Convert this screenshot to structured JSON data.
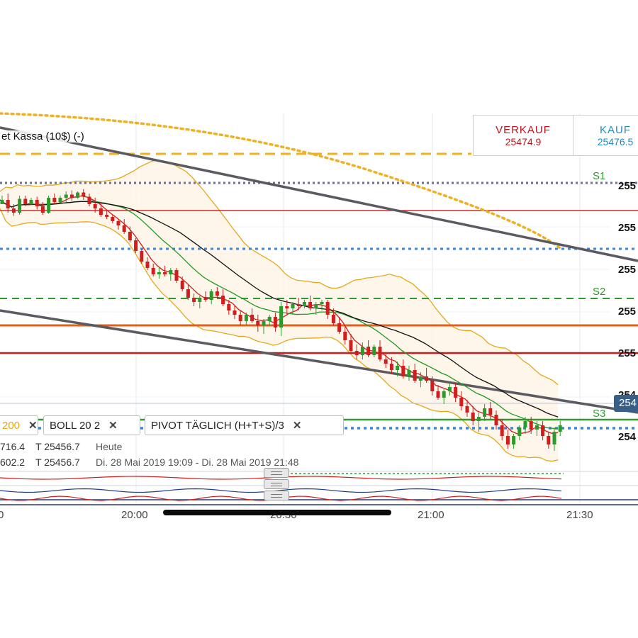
{
  "instrument_title": "et Kassa (10$) (-)",
  "quote": {
    "sell_label": "VERKAUF",
    "sell_value": "25474.9",
    "buy_label": "KAUF",
    "buy_value": "25476.5"
  },
  "indicator_chips": [
    {
      "text": "200"
    },
    {
      "text": "BOLL  20  2"
    },
    {
      "text": "PIVOT  TÄGLICH  (H+T+S)/3"
    }
  ],
  "info": {
    "line1_high": "716.4",
    "line1_low": "T 25456.7",
    "line1_period": "Heute",
    "line2_high": "602.2",
    "line2_low": "T 25456.7",
    "line2_period": "Di. 28 Mai 2019 19:09 - Di. 28 Mai 2019 21:48"
  },
  "current_price_tag": "254",
  "pivot_labels": {
    "s1": "S1",
    "s2": "S2",
    "s3": "S3"
  },
  "colors": {
    "up": "#2e9a2e",
    "down": "#d21d1d",
    "boll_band": "#e6a817",
    "ma200": "#f0b429",
    "trend": "#555555",
    "pivot_green": "#2e9a2e",
    "pivot_blue": "#3b86d6"
  },
  "chart_data": {
    "type": "candlestick",
    "x_axis": {
      "ticks": [
        "0",
        "20:00",
        "20:30",
        "21:00",
        "21:30"
      ]
    },
    "y_axis": {
      "ticks": [
        "255",
        "255",
        "255",
        "255",
        "255",
        "254",
        "254"
      ]
    },
    "candles": [
      [
        25560,
        25568,
        25562,
        25564
      ],
      [
        25564,
        25570,
        25552,
        25556
      ],
      [
        25556,
        25560,
        25549,
        25552
      ],
      [
        25552,
        25568,
        25550,
        25565
      ],
      [
        25565,
        25568,
        25558,
        25560
      ],
      [
        25560,
        25566,
        25559,
        25564
      ],
      [
        25564,
        25567,
        25555,
        25558
      ],
      [
        25558,
        25562,
        25550,
        25552
      ],
      [
        25552,
        25568,
        25551,
        25566
      ],
      [
        25566,
        25570,
        25560,
        25562
      ],
      [
        25562,
        25568,
        25561,
        25566
      ],
      [
        25566,
        25572,
        25562,
        25569
      ],
      [
        25569,
        25573,
        25563,
        25566
      ],
      [
        25566,
        25572,
        25565,
        25571
      ],
      [
        25571,
        25574,
        25564,
        25567
      ],
      [
        25567,
        25570,
        25558,
        25560
      ],
      [
        25560,
        25566,
        25552,
        25556
      ],
      [
        25556,
        25562,
        25548,
        25550
      ],
      [
        25550,
        25555,
        25546,
        25548
      ],
      [
        25548,
        25550,
        25542,
        25544
      ],
      [
        25544,
        25546,
        25536,
        25540
      ],
      [
        25540,
        25546,
        25532,
        25534
      ],
      [
        25534,
        25539,
        25524,
        25526
      ],
      [
        25526,
        25528,
        25514,
        25516
      ],
      [
        25516,
        25518,
        25504,
        25506
      ],
      [
        25506,
        25510,
        25498,
        25500
      ],
      [
        25500,
        25504,
        25492,
        25494
      ],
      [
        25494,
        25500,
        25490,
        25496
      ],
      [
        25496,
        25502,
        25492,
        25494
      ],
      [
        25494,
        25500,
        25488,
        25498
      ],
      [
        25498,
        25500,
        25486,
        25488
      ],
      [
        25488,
        25492,
        25478,
        25480
      ],
      [
        25480,
        25484,
        25470,
        25472
      ],
      [
        25472,
        25476,
        25464,
        25468
      ],
      [
        25468,
        25474,
        25462,
        25472
      ],
      [
        25472,
        25478,
        25468,
        25470
      ],
      [
        25470,
        25480,
        25466,
        25478
      ],
      [
        25478,
        25482,
        25472,
        25474
      ],
      [
        25474,
        25480,
        25464,
        25466
      ],
      [
        25466,
        25470,
        25456,
        25460
      ],
      [
        25460,
        25464,
        25452,
        25456
      ],
      [
        25456,
        25460,
        25446,
        25450
      ],
      [
        25450,
        25458,
        25446,
        25456
      ],
      [
        25456,
        25462,
        25448,
        25450
      ],
      [
        25450,
        25456,
        25440,
        25446
      ],
      [
        25446,
        25452,
        25438,
        25450
      ],
      [
        25450,
        25456,
        25446,
        25454
      ],
      [
        25454,
        25458,
        25440,
        25444
      ],
      [
        25444,
        25468,
        25436,
        25464
      ],
      [
        25464,
        25470,
        25456,
        25462
      ],
      [
        25462,
        25468,
        25456,
        25466
      ],
      [
        25466,
        25472,
        25460,
        25464
      ],
      [
        25464,
        25470,
        25462,
        25468
      ],
      [
        25468,
        25474,
        25460,
        25462
      ],
      [
        25462,
        25468,
        25456,
        25466
      ],
      [
        25466,
        25470,
        25460,
        25468
      ],
      [
        25468,
        25470,
        25452,
        25456
      ],
      [
        25456,
        25462,
        25446,
        25448
      ],
      [
        25448,
        25454,
        25438,
        25440
      ],
      [
        25440,
        25446,
        25428,
        25432
      ],
      [
        25432,
        25438,
        25420,
        25422
      ],
      [
        25422,
        25428,
        25414,
        25418
      ],
      [
        25418,
        25430,
        25414,
        25426
      ],
      [
        25426,
        25432,
        25416,
        25418
      ],
      [
        25418,
        25428,
        25416,
        25426
      ],
      [
        25426,
        25432,
        25412,
        25414
      ],
      [
        25414,
        25420,
        25406,
        25410
      ],
      [
        25410,
        25416,
        25400,
        25404
      ],
      [
        25404,
        25412,
        25398,
        25408
      ],
      [
        25408,
        25414,
        25396,
        25398
      ],
      [
        25398,
        25408,
        25394,
        25404
      ],
      [
        25404,
        25410,
        25392,
        25394
      ],
      [
        25394,
        25402,
        25388,
        25398
      ],
      [
        25398,
        25406,
        25392,
        25394
      ],
      [
        25394,
        25398,
        25380,
        25384
      ],
      [
        25384,
        25390,
        25376,
        25378
      ],
      [
        25378,
        25386,
        25372,
        25384
      ],
      [
        25384,
        25392,
        25380,
        25388
      ],
      [
        25388,
        25392,
        25374,
        25378
      ],
      [
        25378,
        25384,
        25366,
        25370
      ],
      [
        25370,
        25376,
        25360,
        25364
      ],
      [
        25364,
        25370,
        25352,
        25356
      ],
      [
        25356,
        25364,
        25346,
        25360
      ],
      [
        25360,
        25372,
        25356,
        25368
      ],
      [
        25368,
        25374,
        25358,
        25362
      ],
      [
        25362,
        25366,
        25348,
        25352
      ],
      [
        25352,
        25358,
        25338,
        25342
      ],
      [
        25342,
        25348,
        25330,
        25334
      ],
      [
        25334,
        25344,
        25330,
        25342
      ],
      [
        25342,
        25352,
        25338,
        25350
      ],
      [
        25350,
        25360,
        25344,
        25356
      ],
      [
        25356,
        25360,
        25344,
        25348
      ],
      [
        25348,
        25356,
        25342,
        25352
      ],
      [
        25352,
        25356,
        25338,
        25342
      ],
      [
        25342,
        25346,
        25330,
        25334
      ],
      [
        25334,
        25350,
        25328,
        25346
      ],
      [
        25346,
        25356,
        25342,
        25352
      ]
    ],
    "pivot_levels": [
      {
        "label": "S1",
        "value": 25580
      },
      {
        "label": "S2",
        "value": 25471
      },
      {
        "label": "S3",
        "value": 25364
      }
    ]
  }
}
